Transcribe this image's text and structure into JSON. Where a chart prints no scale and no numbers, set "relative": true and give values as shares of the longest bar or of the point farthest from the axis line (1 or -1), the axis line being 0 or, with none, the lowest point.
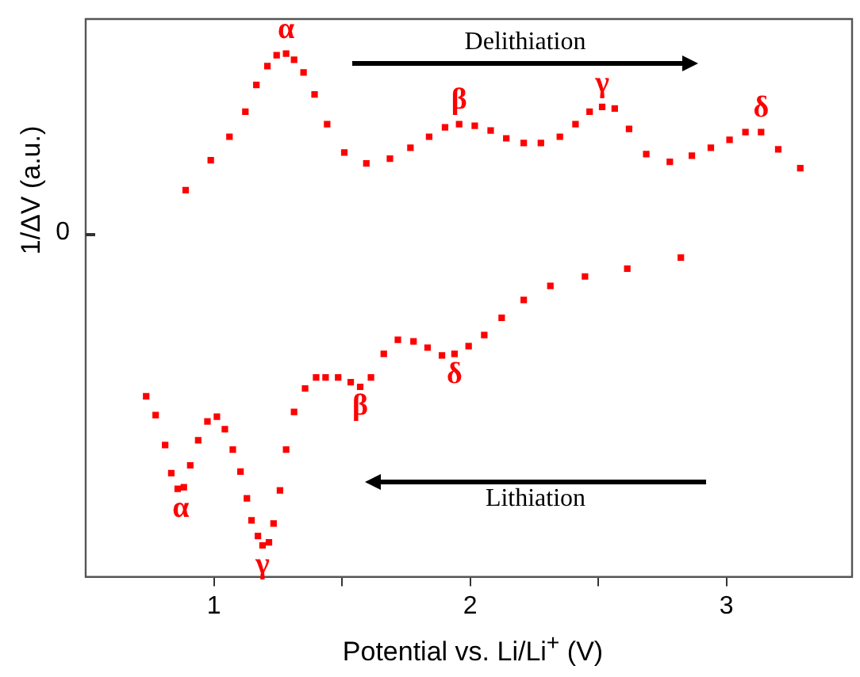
{
  "chart_data": {
    "type": "scatter",
    "xlabel": "Potential vs. Li/Li$^{+}$ (V)",
    "ylabel": "1/ΔV (a.u.)",
    "relative": true,
    "xlim": [
      0.5,
      3.49
    ],
    "xticks": [
      1,
      {
        "value": 1.5,
        "label": null
      },
      2,
      {
        "value": 2.5,
        "label": null
      },
      3
    ],
    "grid": false,
    "legend": false,
    "marker": "square",
    "series": [
      {
        "color": "#ff0000",
        "x": [
          0.89,
          0.988,
          1.061,
          1.123,
          1.166,
          1.209,
          1.245,
          1.282,
          1.313,
          1.35,
          1.393,
          1.442,
          1.509,
          1.595,
          1.687,
          1.767,
          1.84,
          1.902,
          1.957,
          2.018,
          2.08,
          2.141,
          2.209,
          2.276,
          2.35,
          2.411,
          2.466,
          2.515,
          2.564,
          2.62,
          2.687,
          2.779,
          2.865,
          2.939,
          3.012,
          3.074,
          3.135,
          3.202,
          3.288
        ],
        "values": [
          0.739,
          0.796,
          0.841,
          0.889,
          0.94,
          0.976,
          0.997,
          1,
          0.988,
          0.964,
          0.922,
          0.865,
          0.811,
          0.79,
          0.799,
          0.82,
          0.841,
          0.859,
          0.865,
          0.862,
          0.853,
          0.838,
          0.829,
          0.829,
          0.841,
          0.865,
          0.889,
          0.898,
          0.895,
          0.856,
          0.808,
          0.793,
          0.805,
          0.82,
          0.835,
          0.85,
          0.85,
          0.817,
          0.781
        ]
      },
      {
        "color": "#ff0000",
        "x": [
          0.736,
          0.773,
          0.81,
          0.834,
          0.859,
          0.883,
          0.908,
          0.939,
          0.975,
          1.012,
          1.043,
          1.074,
          1.104,
          1.129,
          1.147,
          1.172,
          1.19,
          1.215,
          1.233,
          1.258,
          1.282,
          1.313,
          1.356,
          1.399,
          1.436,
          1.485,
          1.534,
          1.571,
          1.613,
          1.663,
          1.718,
          1.779,
          1.834,
          1.89,
          1.939,
          1.994,
          2.055,
          2.123,
          2.209,
          2.313,
          2.448,
          2.613,
          2.822
        ],
        "values": [
          0.345,
          0.309,
          0.252,
          0.198,
          0.168,
          0.171,
          0.213,
          0.261,
          0.297,
          0.306,
          0.282,
          0.243,
          0.201,
          0.15,
          0.108,
          0.078,
          0.06,
          0.066,
          0.102,
          0.165,
          0.243,
          0.315,
          0.36,
          0.381,
          0.381,
          0.381,
          0.372,
          0.363,
          0.381,
          0.426,
          0.453,
          0.45,
          0.438,
          0.423,
          0.426,
          0.441,
          0.462,
          0.495,
          0.529,
          0.556,
          0.574,
          0.589,
          0.61
        ]
      }
    ],
    "annotations": [
      "0",
      {
        "text": "α",
        "x": 1.282,
        "y": 1
      },
      {
        "text": "β",
        "x": 1.957,
        "y": 0.865
      },
      {
        "text": "γ",
        "x": 2.515,
        "y": 0.898
      },
      {
        "text": "δ",
        "x": 3.135,
        "y": 0.85
      },
      {
        "text": "α",
        "x": 0.871,
        "y": 0.168
      },
      {
        "text": "γ",
        "x": 1.19,
        "y": 0.06
      },
      {
        "text": "β",
        "x": 1.571,
        "y": 0.363
      },
      {
        "text": "δ",
        "x": 1.939,
        "y": 0.423
      },
      "Delithiation",
      "Lithiation"
    ]
  }
}
